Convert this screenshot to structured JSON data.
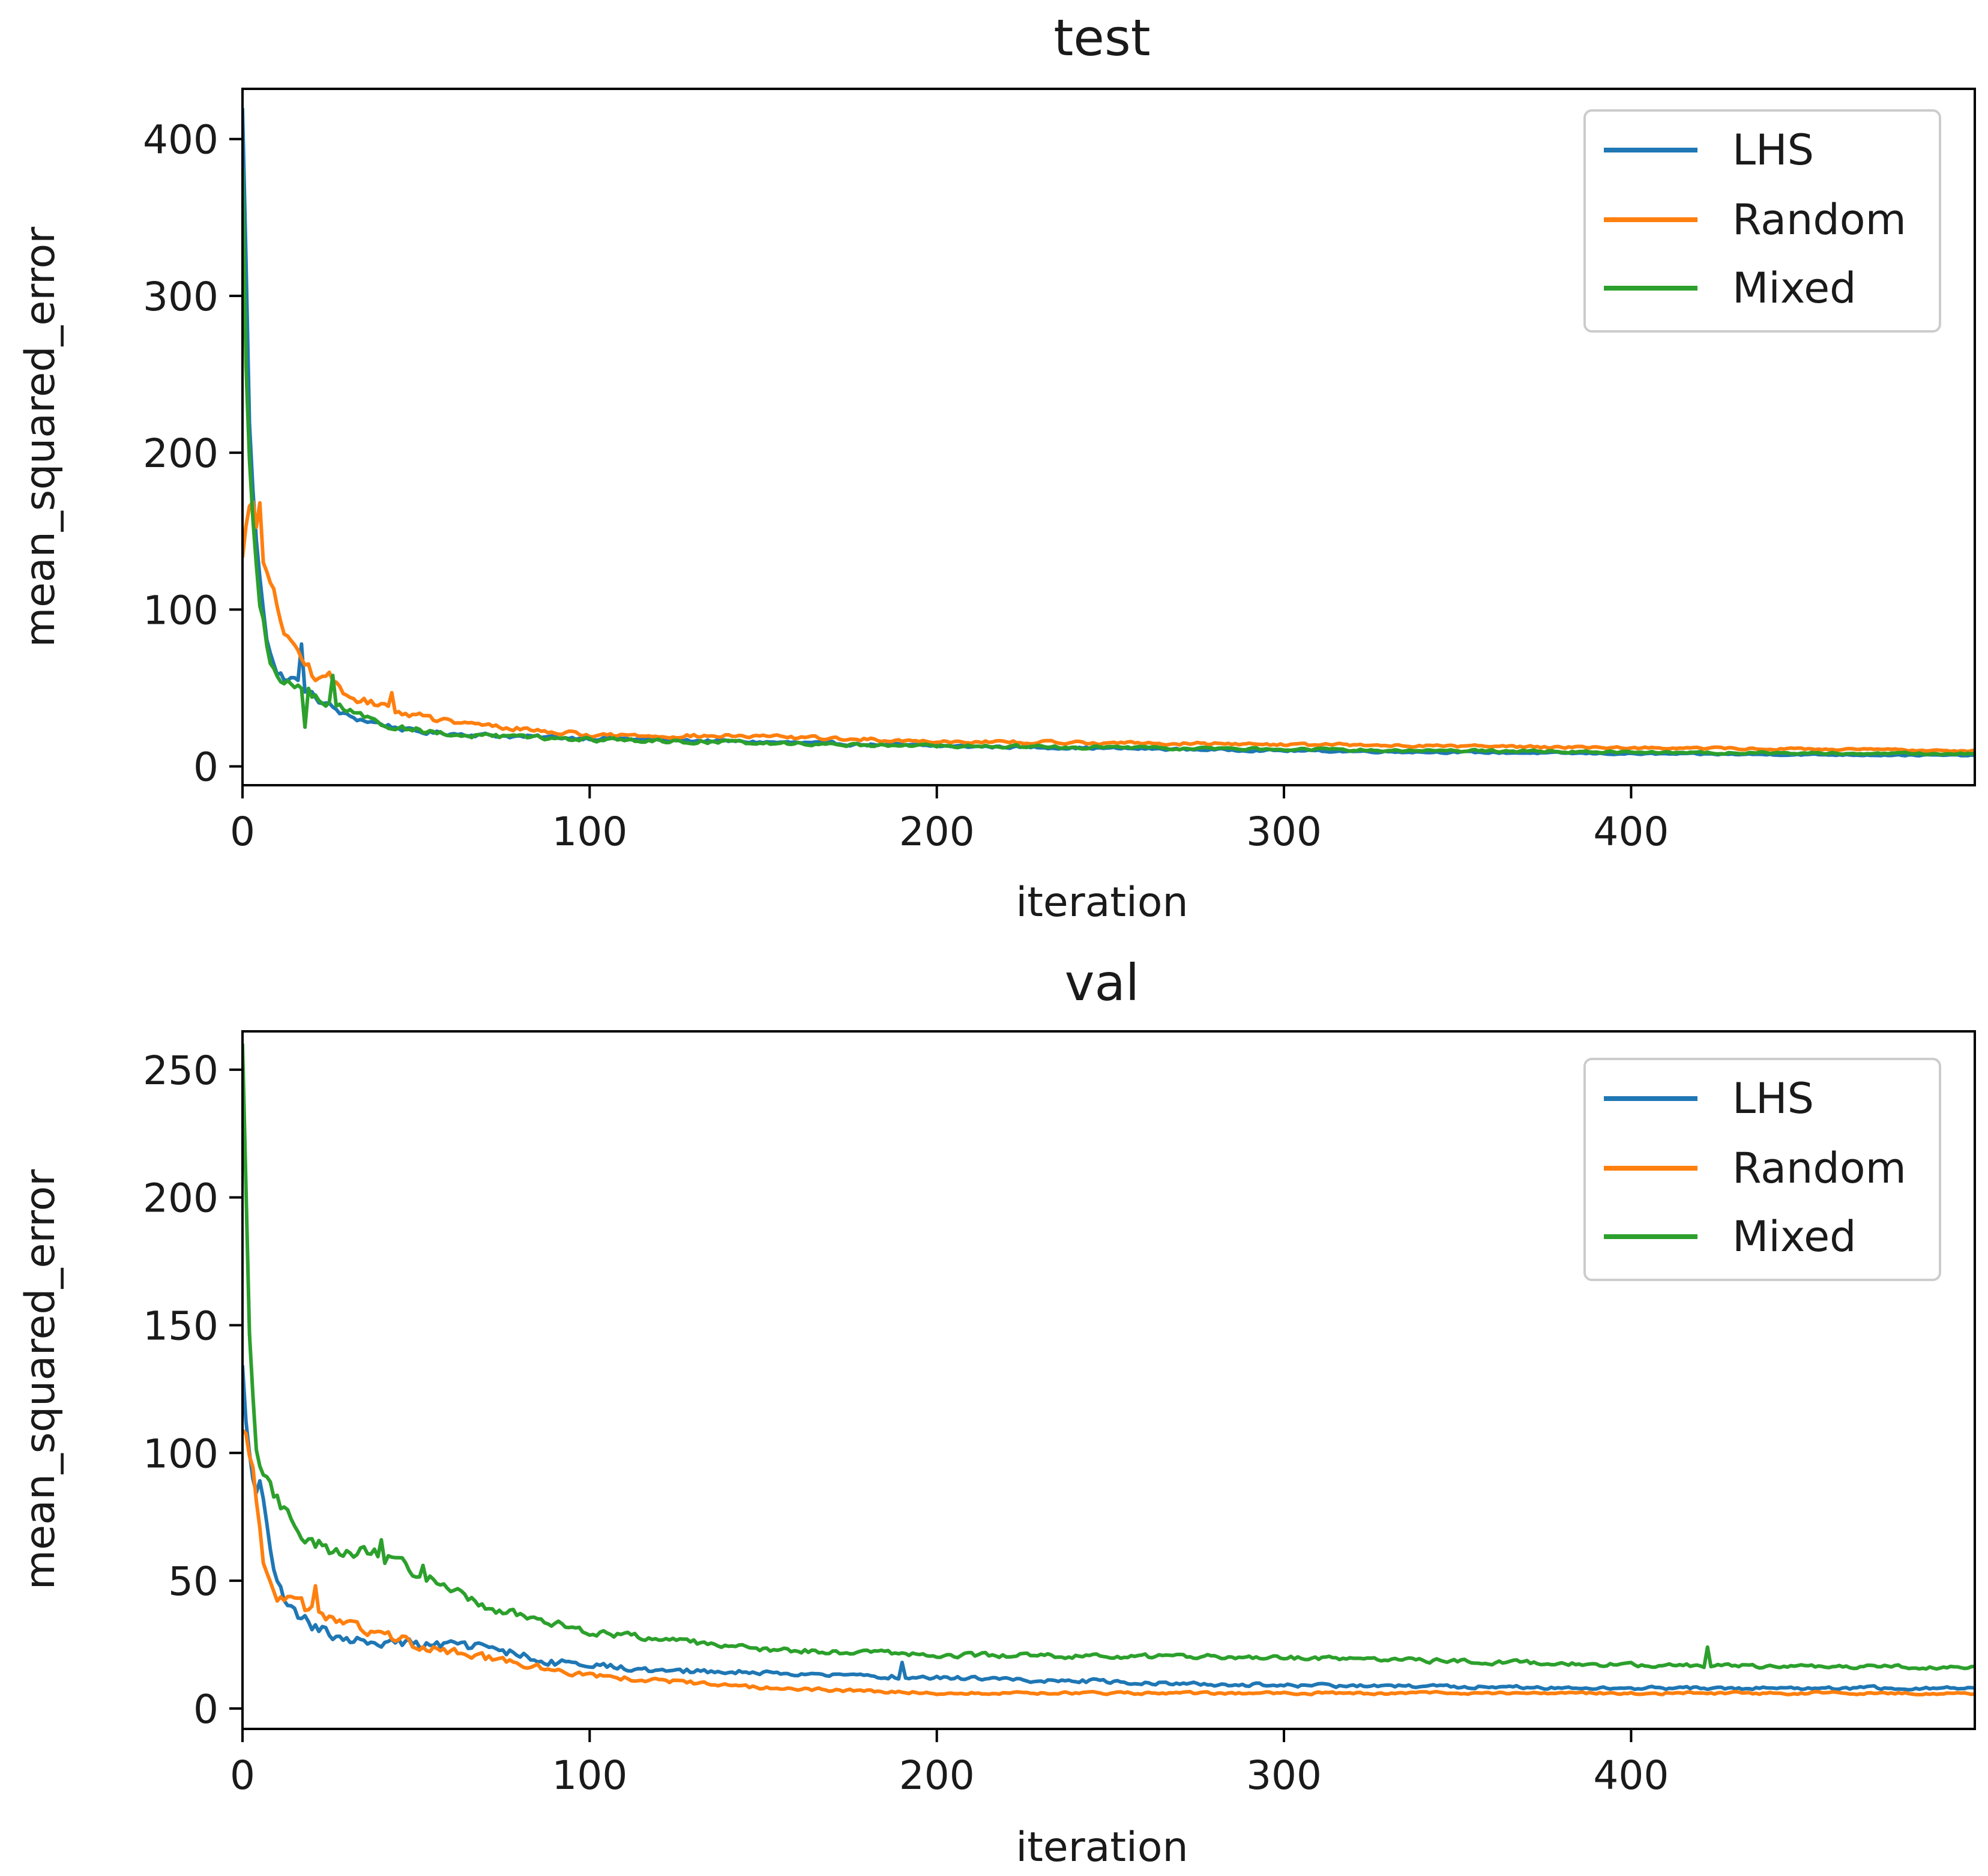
{
  "chart_data": [
    {
      "type": "line",
      "title": "test",
      "xlabel": "iteration",
      "ylabel": "mean_squared_error",
      "xlim": [
        0,
        499
      ],
      "ylim": [
        -12,
        432
      ],
      "xticks": [
        0,
        100,
        200,
        300,
        400
      ],
      "yticks": [
        0,
        100,
        200,
        300,
        400
      ],
      "legend_location": "upper right",
      "n_points": 500,
      "series": [
        {
          "name": "LHS",
          "color": "#1f77b4",
          "anchors": [
            [
              0,
              410
            ],
            [
              1,
              330
            ],
            [
              2,
              215
            ],
            [
              4,
              140
            ],
            [
              7,
              85
            ],
            [
              10,
              58
            ],
            [
              15,
              55
            ],
            [
              20,
              45
            ],
            [
              30,
              32
            ],
            [
              50,
              22
            ],
            [
              80,
              19
            ],
            [
              120,
              17
            ],
            [
              200,
              13
            ],
            [
              300,
              10
            ],
            [
              400,
              8
            ],
            [
              499,
              7
            ]
          ],
          "noise": 0.1,
          "spikes": [
            [
              17,
              78
            ]
          ]
        },
        {
          "name": "Random",
          "color": "#ff7f0e",
          "anchors": [
            [
              0,
              130
            ],
            [
              2,
              165
            ],
            [
              5,
              150
            ],
            [
              8,
              115
            ],
            [
              12,
              85
            ],
            [
              20,
              60
            ],
            [
              30,
              45
            ],
            [
              45,
              35
            ],
            [
              60,
              28
            ],
            [
              100,
              20
            ],
            [
              150,
              19
            ],
            [
              200,
              16
            ],
            [
              300,
              14
            ],
            [
              400,
              12
            ],
            [
              499,
              10
            ]
          ],
          "noise": 0.1,
          "spikes": [
            [
              5,
              168
            ],
            [
              25,
              60
            ],
            [
              43,
              47
            ]
          ]
        },
        {
          "name": "Mixed",
          "color": "#2ca02c",
          "anchors": [
            [
              0,
              370
            ],
            [
              1,
              260
            ],
            [
              3,
              160
            ],
            [
              5,
              100
            ],
            [
              8,
              65
            ],
            [
              15,
              50
            ],
            [
              25,
              40
            ],
            [
              40,
              27
            ],
            [
              60,
              20
            ],
            [
              100,
              17
            ],
            [
              200,
              13
            ],
            [
              300,
              11
            ],
            [
              400,
              9
            ],
            [
              499,
              8
            ]
          ],
          "noise": 0.12,
          "spikes": [
            [
              26,
              58
            ],
            [
              18,
              25
            ]
          ]
        }
      ]
    },
    {
      "type": "line",
      "title": "val",
      "xlabel": "iteration",
      "ylabel": "mean_squared_error",
      "xlim": [
        0,
        499
      ],
      "ylim": [
        -8,
        265
      ],
      "xticks": [
        0,
        100,
        200,
        300,
        400
      ],
      "yticks": [
        0,
        50,
        100,
        150,
        200,
        250
      ],
      "legend_location": "upper right",
      "n_points": 500,
      "series": [
        {
          "name": "LHS",
          "color": "#1f77b4",
          "anchors": [
            [
              0,
              130
            ],
            [
              2,
              95
            ],
            [
              5,
              88
            ],
            [
              8,
              60
            ],
            [
              12,
              40
            ],
            [
              20,
              32
            ],
            [
              30,
              27
            ],
            [
              50,
              25
            ],
            [
              70,
              24
            ],
            [
              90,
              18
            ],
            [
              120,
              15
            ],
            [
              150,
              14
            ],
            [
              200,
              12
            ],
            [
              300,
              9
            ],
            [
              400,
              8
            ],
            [
              499,
              8
            ]
          ],
          "noise": 0.12,
          "spikes": [
            [
              190,
              18
            ]
          ]
        },
        {
          "name": "Random",
          "color": "#ff7f0e",
          "anchors": [
            [
              0,
              105
            ],
            [
              3,
              90
            ],
            [
              6,
              60
            ],
            [
              10,
              45
            ],
            [
              20,
              38
            ],
            [
              30,
              33
            ],
            [
              50,
              25
            ],
            [
              80,
              17
            ],
            [
              100,
              13
            ],
            [
              150,
              8
            ],
            [
              200,
              6
            ],
            [
              300,
              6
            ],
            [
              400,
              6
            ],
            [
              499,
              6
            ]
          ],
          "noise": 0.13,
          "spikes": [
            [
              21,
              48
            ]
          ]
        },
        {
          "name": "Mixed",
          "color": "#2ca02c",
          "anchors": [
            [
              0,
              255
            ],
            [
              2,
              150
            ],
            [
              4,
              100
            ],
            [
              8,
              85
            ],
            [
              15,
              70
            ],
            [
              25,
              62
            ],
            [
              40,
              60
            ],
            [
              55,
              50
            ],
            [
              70,
              40
            ],
            [
              100,
              30
            ],
            [
              150,
              23
            ],
            [
              200,
              21
            ],
            [
              300,
              20
            ],
            [
              400,
              17
            ],
            [
              499,
              16
            ]
          ],
          "noise": 0.07,
          "spikes": [
            [
              40,
              66
            ],
            [
              52,
              56
            ],
            [
              422,
              24
            ]
          ]
        }
      ]
    }
  ]
}
